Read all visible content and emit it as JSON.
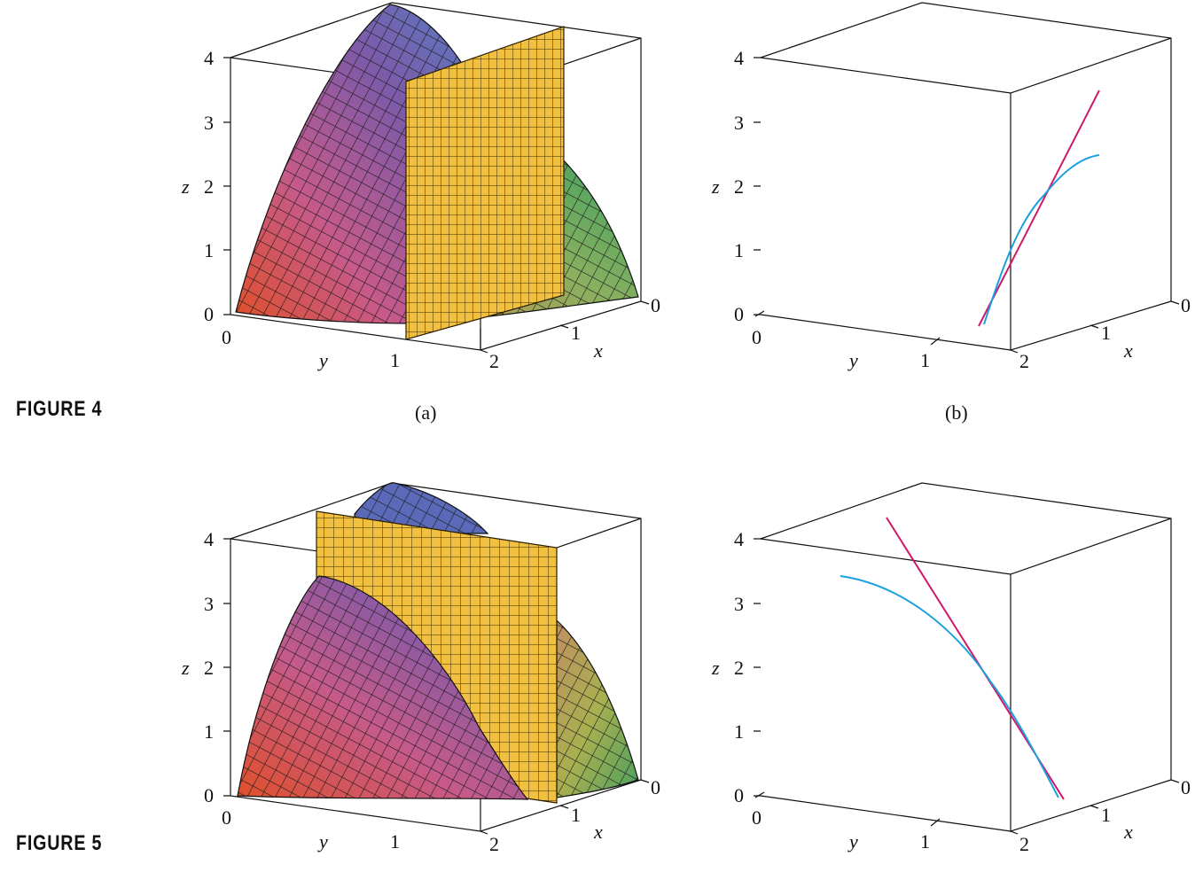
{
  "figures": [
    {
      "label": "FIGURE 4",
      "panels": [
        {
          "caption": "(a)",
          "kind": "surface",
          "plane": "y"
        },
        {
          "caption": "(b)",
          "kind": "curves",
          "slope": "positive"
        }
      ]
    },
    {
      "label": "FIGURE 5",
      "panels": [
        {
          "caption": "",
          "kind": "surface",
          "plane": "x"
        },
        {
          "caption": "",
          "kind": "curves",
          "slope": "negative"
        }
      ]
    }
  ],
  "axes": {
    "z_label": "z",
    "y_label": "y",
    "x_label": "x",
    "z_ticks": [
      "0",
      "1",
      "2",
      "3",
      "4"
    ],
    "y_ticks": [
      "0",
      "1"
    ],
    "x_ticks": [
      "0",
      "1",
      "2"
    ]
  },
  "colors": {
    "box_edge": "#111111",
    "surface_grid": "#1a1a1a",
    "plane_fill": "#f2c040",
    "plane_grid": "#3a2a00",
    "tangent_line": "#d0186a",
    "trace_curve": "#1aa0e0",
    "surface_gradient": [
      "#e0502a",
      "#c65a8a",
      "#7e5aa8",
      "#5a78c0",
      "#6cb060",
      "#a8c84a"
    ]
  }
}
